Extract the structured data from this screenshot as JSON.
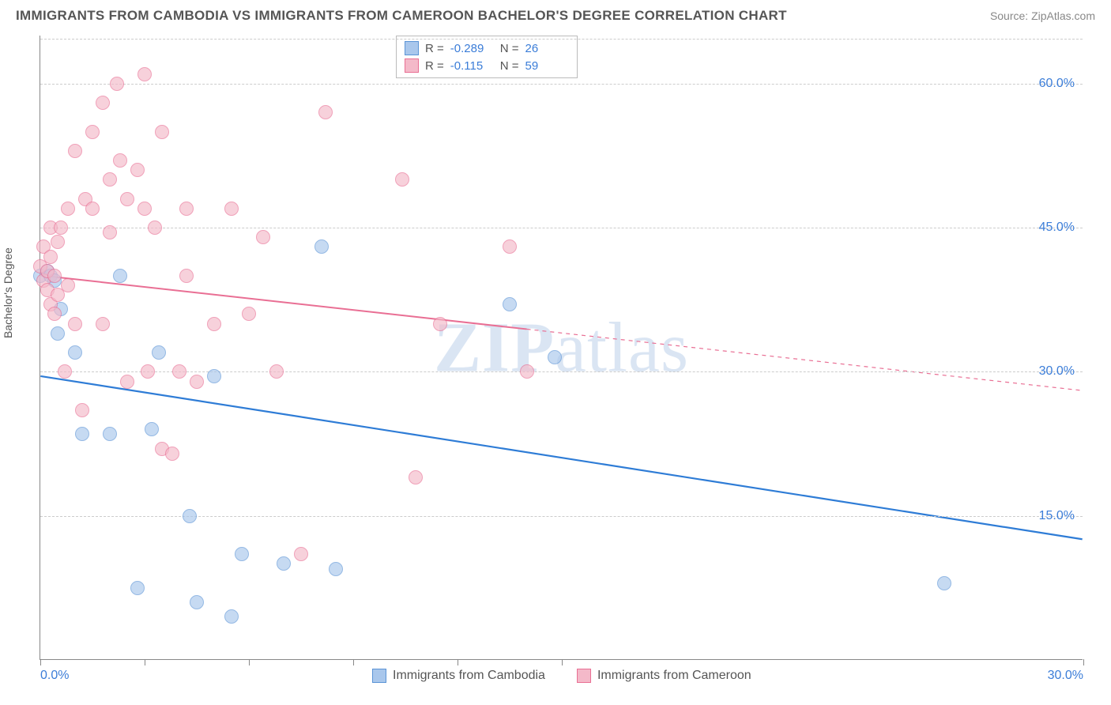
{
  "header": {
    "title": "IMMIGRANTS FROM CAMBODIA VS IMMIGRANTS FROM CAMEROON BACHELOR'S DEGREE CORRELATION CHART",
    "source": "Source: ZipAtlas.com"
  },
  "chart": {
    "type": "scatter",
    "ylabel": "Bachelor's Degree",
    "background_color": "#ffffff",
    "grid_color": "#cccccc",
    "axis_color": "#888888",
    "label_color": "#555555",
    "tick_label_color": "#3b7dd8",
    "label_fontsize": 14,
    "tick_fontsize": 16,
    "marker_radius": 9,
    "marker_opacity": 0.65,
    "xlim": [
      0,
      30
    ],
    "ylim": [
      0,
      65
    ],
    "xticks": [
      0,
      3,
      6,
      9,
      12,
      15,
      30
    ],
    "xtick_labels_shown": {
      "0": "0.0%",
      "30": "30.0%"
    },
    "yticks": [
      15,
      30,
      45,
      60
    ],
    "ytick_labels": [
      "15.0%",
      "30.0%",
      "45.0%",
      "60.0%"
    ],
    "watermark": "ZIPatlas",
    "watermark_color": "rgba(150,180,220,0.35)",
    "series": [
      {
        "name": "Immigrants from Cambodia",
        "color_fill": "#a9c7ec",
        "color_stroke": "#5b94d6",
        "R": "-0.289",
        "N": "26",
        "trend": {
          "y_at_x0": 29.5,
          "y_at_x30": 12.5,
          "solid_until_x": 30,
          "line_color": "#2e7cd6",
          "line_width": 2.2
        },
        "points": [
          [
            0.0,
            40
          ],
          [
            0.2,
            40.5
          ],
          [
            0.3,
            40
          ],
          [
            0.4,
            39.5
          ],
          [
            0.5,
            34
          ],
          [
            0.6,
            36.5
          ],
          [
            1.0,
            32
          ],
          [
            1.2,
            23.5
          ],
          [
            2.0,
            23.5
          ],
          [
            2.3,
            40
          ],
          [
            2.8,
            7.5
          ],
          [
            3.2,
            24
          ],
          [
            3.4,
            32
          ],
          [
            4.3,
            15
          ],
          [
            4.5,
            6
          ],
          [
            5.0,
            29.5
          ],
          [
            5.5,
            4.5
          ],
          [
            5.8,
            11
          ],
          [
            7.0,
            10
          ],
          [
            8.1,
            43
          ],
          [
            8.5,
            9.5
          ],
          [
            13.5,
            37
          ],
          [
            14.8,
            31.5
          ],
          [
            26.0,
            8
          ]
        ]
      },
      {
        "name": "Immigrants from Cameroon",
        "color_fill": "#f4b9c9",
        "color_stroke": "#e96f94",
        "R": "-0.115",
        "N": "59",
        "trend": {
          "y_at_x0": 40,
          "y_at_x30": 28,
          "solid_until_x": 14,
          "line_color": "#e96f94",
          "line_width": 2
        },
        "points": [
          [
            0.0,
            41
          ],
          [
            0.1,
            43
          ],
          [
            0.1,
            39.5
          ],
          [
            0.2,
            40.5
          ],
          [
            0.2,
            38.5
          ],
          [
            0.3,
            42
          ],
          [
            0.3,
            37
          ],
          [
            0.3,
            45
          ],
          [
            0.4,
            40
          ],
          [
            0.4,
            36
          ],
          [
            0.5,
            43.5
          ],
          [
            0.5,
            38
          ],
          [
            0.6,
            45
          ],
          [
            0.7,
            30
          ],
          [
            0.8,
            47
          ],
          [
            0.8,
            39
          ],
          [
            1.0,
            35
          ],
          [
            1.0,
            53
          ],
          [
            1.2,
            26
          ],
          [
            1.3,
            48
          ],
          [
            1.5,
            55
          ],
          [
            1.5,
            47
          ],
          [
            1.8,
            58
          ],
          [
            1.8,
            35
          ],
          [
            2.0,
            50
          ],
          [
            2.0,
            44.5
          ],
          [
            2.2,
            60
          ],
          [
            2.3,
            52
          ],
          [
            2.5,
            48
          ],
          [
            2.5,
            29
          ],
          [
            2.8,
            51
          ],
          [
            3.0,
            47
          ],
          [
            3.0,
            61
          ],
          [
            3.1,
            30
          ],
          [
            3.3,
            45
          ],
          [
            3.5,
            55
          ],
          [
            3.5,
            22
          ],
          [
            3.8,
            21.5
          ],
          [
            4.0,
            30
          ],
          [
            4.2,
            47
          ],
          [
            4.2,
            40
          ],
          [
            4.5,
            29
          ],
          [
            5.0,
            35
          ],
          [
            5.5,
            47
          ],
          [
            6.0,
            36
          ],
          [
            6.4,
            44
          ],
          [
            6.8,
            30
          ],
          [
            7.5,
            11
          ],
          [
            8.2,
            57
          ],
          [
            10.4,
            50
          ],
          [
            10.8,
            19
          ],
          [
            11.5,
            35
          ],
          [
            13.5,
            43
          ],
          [
            14.0,
            30
          ]
        ]
      }
    ],
    "legend_stats_labels": {
      "R": "R =",
      "N": "N ="
    }
  }
}
